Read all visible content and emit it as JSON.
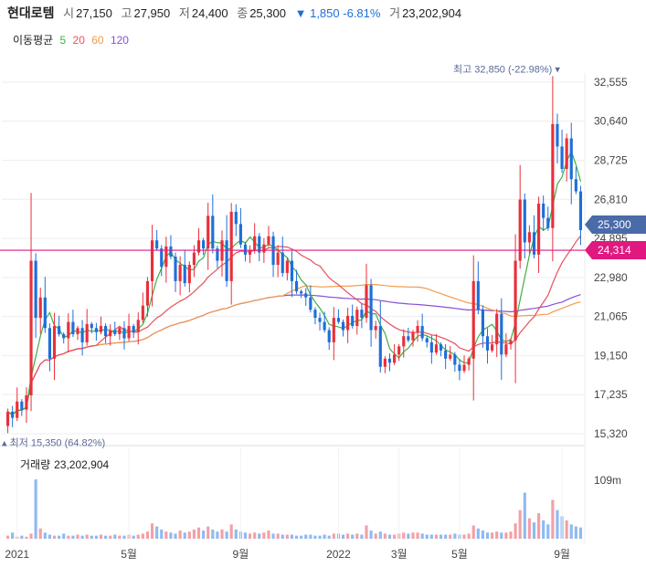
{
  "header": {
    "name": "현대로템",
    "open_label": "시",
    "open": "27,150",
    "high_label": "고",
    "high": "27,950",
    "low_label": "저",
    "low": "24,400",
    "close_label": "종",
    "close": "25,300",
    "change_arrow": "▼",
    "change": "1,850",
    "change_pct": "-6.81%",
    "volume_label": "거",
    "volume": "23,202,904"
  },
  "ma_legend": {
    "label": "이동평균",
    "items": [
      {
        "text": "5",
        "color": "#3cb043"
      },
      {
        "text": "20",
        "color": "#e8505b"
      },
      {
        "text": "60",
        "color": "#f39a4a"
      },
      {
        "text": "120",
        "color": "#8a4fd6"
      }
    ]
  },
  "volume_panel": {
    "label": "거래량",
    "value": "23,202,904",
    "tick": "109m"
  },
  "annotations": {
    "max_text": "최고 32,850 (-22.98%) ▾",
    "min_text": "▴ 최저 15,350 (64.82%)",
    "current_price": "25,300",
    "ref_price": "24,314"
  },
  "colors": {
    "up": "#e8303b",
    "down": "#1e6fd9",
    "up_vol": "#f3a0a6",
    "down_vol": "#8fbaf2",
    "ref_line": "#e0187f",
    "current_tag": "#4a6aa8"
  },
  "chart_data": {
    "type": "candlestick",
    "y_ticks": [
      "32,555",
      "30,640",
      "28,725",
      "26,810",
      "24,895",
      "22,980",
      "21,065",
      "19,150",
      "17,235",
      "15,320"
    ],
    "ylim": [
      15320,
      33000
    ],
    "x_ticks": [
      "2021",
      "5월",
      "9월",
      "2022",
      "3월",
      "5월",
      "9월"
    ],
    "series": [
      {
        "name": "price",
        "values": [
          [
            15700,
            16400
          ],
          [
            16400,
            16100
          ],
          [
            16100,
            16900
          ],
          [
            16900,
            16500
          ],
          [
            16500,
            17200
          ],
          [
            17200,
            23800
          ],
          [
            23800,
            21000
          ],
          [
            21000,
            22000
          ],
          [
            22000,
            20500
          ],
          [
            20500,
            19000
          ],
          [
            19000,
            20600
          ],
          [
            20600,
            20200
          ],
          [
            20200,
            20000
          ],
          [
            20000,
            20800
          ],
          [
            20800,
            20200
          ],
          [
            20200,
            20500
          ],
          [
            20500,
            19800
          ],
          [
            19800,
            20700
          ],
          [
            20700,
            20500
          ],
          [
            20500,
            20300
          ],
          [
            20300,
            20600
          ],
          [
            20600,
            20100
          ],
          [
            20100,
            20400
          ],
          [
            20400,
            20200
          ],
          [
            20200,
            20500
          ],
          [
            20500,
            20000
          ],
          [
            20000,
            20600
          ],
          [
            20600,
            20300
          ],
          [
            20300,
            20900
          ],
          [
            20900,
            21600
          ],
          [
            21600,
            22800
          ],
          [
            22800,
            24800
          ],
          [
            24800,
            24400
          ],
          [
            24400,
            23500
          ],
          [
            23500,
            24500
          ],
          [
            24500,
            24000
          ],
          [
            24000,
            22800
          ],
          [
            22800,
            23600
          ],
          [
            23600,
            22700
          ],
          [
            22700,
            23600
          ],
          [
            23600,
            24200
          ],
          [
            24200,
            24800
          ],
          [
            24800,
            24400
          ],
          [
            24400,
            26000
          ],
          [
            26000,
            24400
          ],
          [
            24400,
            23800
          ],
          [
            23800,
            24800
          ],
          [
            24800,
            22800
          ],
          [
            22800,
            26200
          ],
          [
            26200,
            25600
          ],
          [
            25600,
            24600
          ],
          [
            24600,
            24100
          ],
          [
            24100,
            24300
          ],
          [
            24300,
            25000
          ],
          [
            25000,
            24200
          ],
          [
            24200,
            24600
          ],
          [
            24600,
            25000
          ],
          [
            25000,
            23600
          ],
          [
            23600,
            24200
          ],
          [
            24200,
            23200
          ],
          [
            23200,
            23800
          ],
          [
            23800,
            22800
          ],
          [
            22800,
            22300
          ],
          [
            22300,
            22200
          ],
          [
            22200,
            22000
          ],
          [
            22000,
            21400
          ],
          [
            21400,
            21000
          ],
          [
            21000,
            20800
          ],
          [
            20800,
            20400
          ],
          [
            20400,
            19800
          ],
          [
            19800,
            21000
          ],
          [
            21000,
            20800
          ],
          [
            20800,
            20400
          ],
          [
            20400,
            21100
          ],
          [
            21100,
            20600
          ],
          [
            20600,
            21400
          ],
          [
            21400,
            21000
          ],
          [
            21000,
            22600
          ],
          [
            22600,
            20400
          ],
          [
            20400,
            20600
          ],
          [
            20600,
            18600
          ],
          [
            18600,
            19000
          ],
          [
            19000,
            18800
          ],
          [
            18800,
            19200
          ],
          [
            19200,
            19600
          ],
          [
            19600,
            20100
          ],
          [
            20100,
            19900
          ],
          [
            19900,
            20300
          ],
          [
            20300,
            20600
          ],
          [
            20600,
            20000
          ],
          [
            20000,
            19800
          ],
          [
            19800,
            19300
          ],
          [
            19300,
            19700
          ],
          [
            19700,
            19400
          ],
          [
            19400,
            19000
          ],
          [
            19000,
            19200
          ],
          [
            19200,
            18700
          ],
          [
            18700,
            18400
          ],
          [
            18400,
            18700
          ],
          [
            18700,
            19000
          ],
          [
            19000,
            22800
          ],
          [
            22800,
            21400
          ],
          [
            21400,
            20100
          ],
          [
            20100,
            19400
          ],
          [
            19400,
            19700
          ],
          [
            19700,
            21200
          ],
          [
            21200,
            19200
          ],
          [
            19200,
            19700
          ],
          [
            19700,
            19900
          ],
          [
            19900,
            23800
          ],
          [
            23800,
            26800
          ],
          [
            26800,
            24700
          ],
          [
            24700,
            25200
          ],
          [
            25200,
            24100
          ],
          [
            24100,
            26600
          ],
          [
            26600,
            25900
          ],
          [
            25900,
            25400
          ],
          [
            25400,
            30500
          ],
          [
            30500,
            29400
          ],
          [
            29400,
            28300
          ],
          [
            28300,
            29800
          ],
          [
            29800,
            27800
          ],
          [
            27800,
            27200
          ],
          [
            27200,
            25300
          ]
        ]
      }
    ],
    "volume": [
      3,
      6,
      2,
      3,
      2,
      5,
      58,
      10,
      6,
      4,
      3,
      3,
      5,
      3,
      3,
      4,
      3,
      4,
      3,
      3,
      4,
      3,
      3,
      4,
      3,
      3,
      4,
      3,
      4,
      5,
      7,
      15,
      12,
      9,
      7,
      6,
      5,
      8,
      6,
      7,
      9,
      11,
      8,
      12,
      9,
      7,
      9,
      7,
      14,
      9,
      7,
      6,
      5,
      6,
      5,
      6,
      8,
      5,
      5,
      4,
      4,
      4,
      3,
      3,
      4,
      4,
      3,
      3,
      4,
      3,
      5,
      5,
      4,
      5,
      4,
      5,
      4,
      13,
      8,
      5,
      7,
      5,
      4,
      4,
      5,
      6,
      5,
      6,
      6,
      5,
      4,
      4,
      4,
      4,
      4,
      4,
      5,
      4,
      4,
      5,
      13,
      10,
      8,
      6,
      6,
      7,
      6,
      6,
      7,
      15,
      28,
      45,
      20,
      16,
      25,
      18,
      14,
      38,
      28,
      22,
      18,
      14,
      12,
      11
    ],
    "ma5_color": "#3cb043",
    "ma20_color": "#e8505b",
    "ma60_color": "#f39a4a",
    "ma120_color": "#8a4fd6"
  }
}
